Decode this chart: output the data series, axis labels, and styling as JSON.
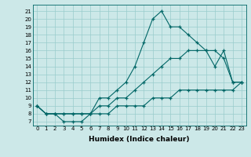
{
  "xlabel": "Humidex (Indice chaleur)",
  "bg_color": "#cce8e8",
  "line_color": "#006666",
  "grid_color": "#99cccc",
  "xlim": [
    -0.5,
    23.5
  ],
  "ylim": [
    6.5,
    21.8
  ],
  "xticks": [
    0,
    1,
    2,
    3,
    4,
    5,
    6,
    7,
    8,
    9,
    10,
    11,
    12,
    13,
    14,
    15,
    16,
    17,
    18,
    19,
    20,
    21,
    22,
    23
  ],
  "yticks": [
    7,
    8,
    9,
    10,
    11,
    12,
    13,
    14,
    15,
    16,
    17,
    18,
    19,
    20,
    21
  ],
  "line1_x": [
    0,
    1,
    2,
    3,
    4,
    5,
    6,
    7,
    8,
    9,
    10,
    11,
    12,
    13,
    14,
    15,
    16,
    17,
    18,
    19,
    20,
    21,
    22,
    23
  ],
  "line1_y": [
    9,
    8,
    8,
    7,
    7,
    7,
    8,
    10,
    10,
    11,
    12,
    14,
    17,
    20,
    21,
    19,
    19,
    18,
    17,
    16,
    14,
    16,
    12,
    12
  ],
  "line2_x": [
    0,
    1,
    2,
    3,
    4,
    5,
    6,
    7,
    8,
    9,
    10,
    11,
    12,
    13,
    14,
    15,
    16,
    17,
    18,
    19,
    20,
    21,
    22,
    23
  ],
  "line2_y": [
    9,
    8,
    8,
    8,
    8,
    8,
    8,
    9,
    9,
    10,
    10,
    11,
    12,
    13,
    14,
    15,
    15,
    16,
    16,
    16,
    16,
    15,
    12,
    12
  ],
  "line3_x": [
    0,
    1,
    2,
    3,
    4,
    5,
    6,
    7,
    8,
    9,
    10,
    11,
    12,
    13,
    14,
    15,
    16,
    17,
    18,
    19,
    20,
    21,
    22,
    23
  ],
  "line3_y": [
    9,
    8,
    8,
    8,
    8,
    8,
    8,
    8,
    8,
    9,
    9,
    9,
    9,
    10,
    10,
    10,
    11,
    11,
    11,
    11,
    11,
    11,
    11,
    12
  ],
  "tick_fontsize": 5.0,
  "xlabel_fontsize": 6.5
}
